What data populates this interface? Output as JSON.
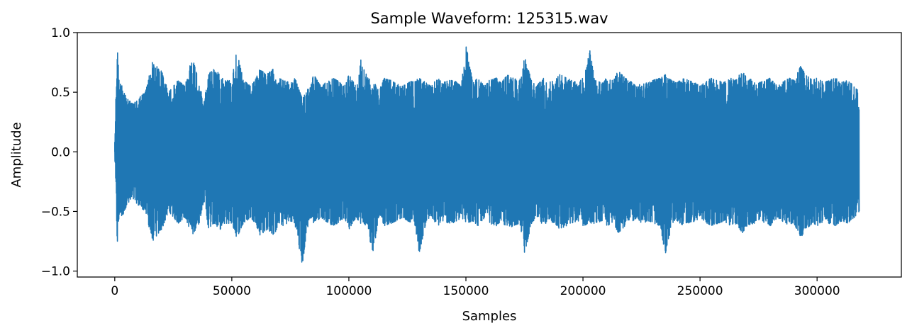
{
  "chart_data": {
    "type": "line",
    "title": "Sample Waveform: 125315.wav",
    "xlabel": "Samples",
    "ylabel": "Amplitude",
    "xlim": [
      -16000,
      336000
    ],
    "ylim": [
      -1.05,
      1.0
    ],
    "xticks": [
      0,
      50000,
      100000,
      150000,
      200000,
      250000,
      300000
    ],
    "xtick_labels": [
      "0",
      "50000",
      "100000",
      "150000",
      "200000",
      "250000",
      "300000"
    ],
    "yticks": [
      -1.0,
      -0.5,
      0.0,
      0.5,
      1.0
    ],
    "ytick_labels": [
      "−1.0",
      "−0.5",
      "0.0",
      "0.5",
      "1.0"
    ],
    "grid": false,
    "legend": "none",
    "series": [
      {
        "color": "#1f77b4",
        "x_start": 0,
        "x_end": 320000,
        "envelope": {
          "x": [
            0,
            1000,
            2000,
            3000,
            5000,
            8000,
            10000,
            13000,
            16000,
            20000,
            23000,
            25000,
            27000,
            30000,
            33000,
            36000,
            38000,
            40000,
            42000,
            45000,
            47000,
            50000,
            52000,
            55000,
            58000,
            60000,
            62000,
            65000,
            68000,
            70000,
            72000,
            75000,
            77000,
            80000,
            83000,
            85000,
            88000,
            90000,
            93000,
            95000,
            98000,
            100000,
            103000,
            105000,
            108000,
            110000,
            113000,
            115000,
            118000,
            120000,
            123000,
            125000,
            128000,
            130000,
            133000,
            135000,
            138000,
            140000,
            143000,
            145000,
            148000,
            150000,
            153000,
            155000,
            158000,
            160000,
            163000,
            165000,
            168000,
            170000,
            173000,
            175000,
            178000,
            180000,
            183000,
            185000,
            188000,
            190000,
            193000,
            195000,
            198000,
            200000,
            203000,
            205000,
            208000,
            210000,
            213000,
            215000,
            218000,
            220000,
            223000,
            225000,
            228000,
            230000,
            233000,
            235000,
            238000,
            240000,
            243000,
            245000,
            248000,
            250000,
            253000,
            255000,
            258000,
            260000,
            263000,
            265000,
            268000,
            270000,
            273000,
            275000,
            278000,
            280000,
            283000,
            285000,
            288000,
            290000,
            293000,
            295000,
            298000,
            300000,
            303000,
            305000,
            308000,
            310000,
            313000,
            316000,
            318000,
            320000
          ],
          "max": [
            0.05,
            0.92,
            0.55,
            0.6,
            0.45,
            0.4,
            0.45,
            0.5,
            0.75,
            0.68,
            0.5,
            0.55,
            0.6,
            0.55,
            0.8,
            0.6,
            0.4,
            0.65,
            0.7,
            0.65,
            0.6,
            0.6,
            0.85,
            0.6,
            0.55,
            0.6,
            0.7,
            0.65,
            0.7,
            0.62,
            0.6,
            0.58,
            0.62,
            0.45,
            0.55,
            0.65,
            0.55,
            0.58,
            0.62,
            0.6,
            0.55,
            0.65,
            0.55,
            0.78,
            0.62,
            0.6,
            0.52,
            0.62,
            0.6,
            0.58,
            0.55,
            0.58,
            0.6,
            0.62,
            0.58,
            0.55,
            0.62,
            0.58,
            0.6,
            0.6,
            0.55,
            0.9,
            0.58,
            0.62,
            0.55,
            0.6,
            0.62,
            0.58,
            0.65,
            0.62,
            0.6,
            0.8,
            0.6,
            0.55,
            0.62,
            0.58,
            0.6,
            0.65,
            0.62,
            0.6,
            0.58,
            0.62,
            0.85,
            0.6,
            0.58,
            0.62,
            0.6,
            0.68,
            0.62,
            0.6,
            0.55,
            0.6,
            0.58,
            0.6,
            0.62,
            0.65,
            0.6,
            0.58,
            0.62,
            0.6,
            0.58,
            0.55,
            0.6,
            0.62,
            0.6,
            0.58,
            0.62,
            0.6,
            0.68,
            0.62,
            0.6,
            0.58,
            0.6,
            0.62,
            0.55,
            0.58,
            0.62,
            0.6,
            0.72,
            0.65,
            0.6,
            0.62,
            0.58,
            0.6,
            0.62,
            0.58,
            0.6,
            0.55,
            0.5
          ],
          "min": [
            -0.05,
            -0.78,
            -0.5,
            -0.55,
            -0.45,
            -0.4,
            -0.45,
            -0.5,
            -0.75,
            -0.65,
            -0.5,
            -0.55,
            -0.6,
            -0.55,
            -0.7,
            -0.6,
            -0.4,
            -0.65,
            -0.6,
            -0.65,
            -0.6,
            -0.6,
            -0.72,
            -0.6,
            -0.55,
            -0.6,
            -0.7,
            -0.65,
            -0.7,
            -0.6,
            -0.62,
            -0.58,
            -0.62,
            -0.95,
            -0.55,
            -0.6,
            -0.55,
            -0.58,
            -0.62,
            -0.6,
            -0.55,
            -0.65,
            -0.55,
            -0.6,
            -0.62,
            -0.88,
            -0.52,
            -0.62,
            -0.6,
            -0.58,
            -0.55,
            -0.58,
            -0.6,
            -0.85,
            -0.58,
            -0.55,
            -0.62,
            -0.58,
            -0.6,
            -0.6,
            -0.55,
            -0.6,
            -0.58,
            -0.62,
            -0.55,
            -0.6,
            -0.62,
            -0.58,
            -0.65,
            -0.62,
            -0.6,
            -0.85,
            -0.6,
            -0.55,
            -0.62,
            -0.58,
            -0.6,
            -0.65,
            -0.62,
            -0.6,
            -0.58,
            -0.62,
            -0.6,
            -0.6,
            -0.58,
            -0.62,
            -0.6,
            -0.68,
            -0.62,
            -0.6,
            -0.55,
            -0.6,
            -0.58,
            -0.6,
            -0.62,
            -0.87,
            -0.6,
            -0.58,
            -0.62,
            -0.6,
            -0.58,
            -0.55,
            -0.6,
            -0.62,
            -0.6,
            -0.58,
            -0.62,
            -0.6,
            -0.68,
            -0.62,
            -0.6,
            -0.58,
            -0.6,
            -0.62,
            -0.55,
            -0.58,
            -0.62,
            -0.6,
            -0.72,
            -0.65,
            -0.6,
            -0.62,
            -0.58,
            -0.6,
            -0.62,
            -0.58,
            -0.6,
            -0.55,
            -0.5
          ]
        }
      }
    ]
  }
}
